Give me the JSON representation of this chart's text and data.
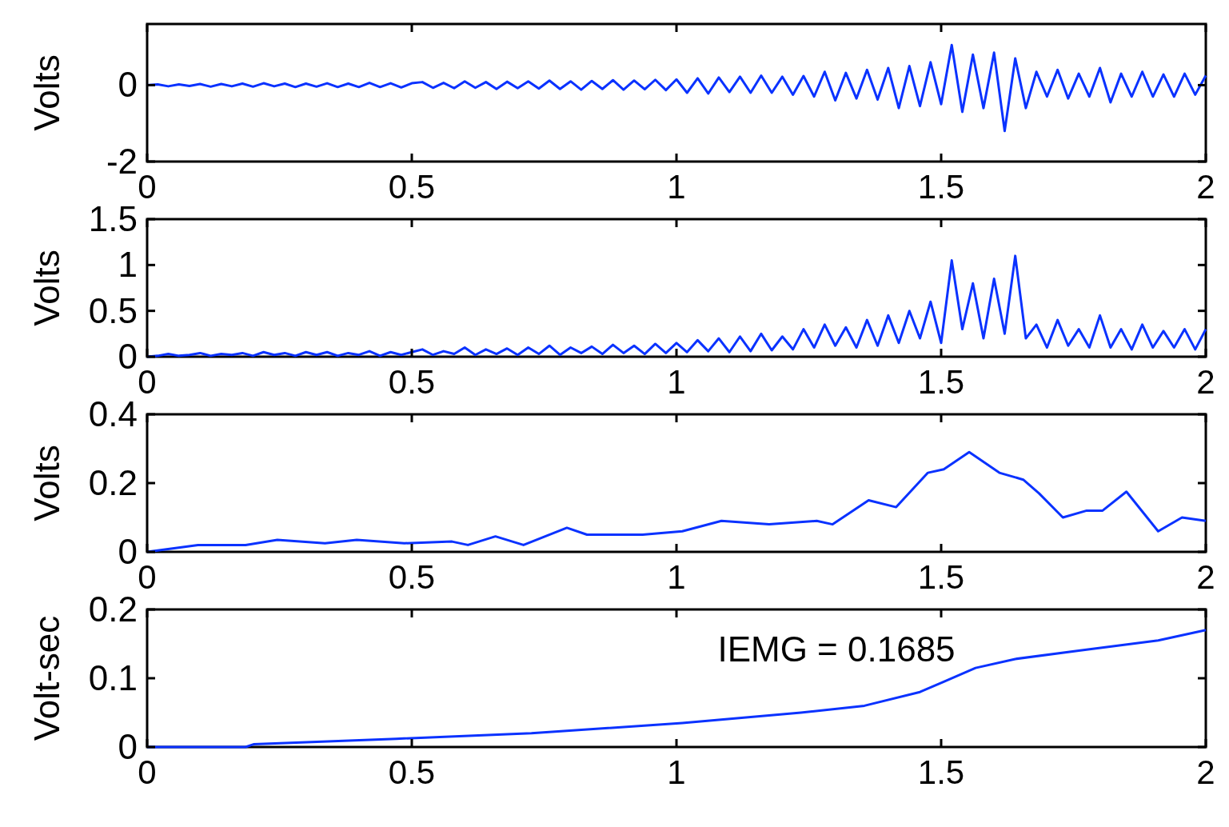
{
  "chart_data": [
    {
      "type": "line",
      "ylabel": "Volts",
      "xlim": [
        0,
        2
      ],
      "xticks": [
        0,
        0.5,
        1,
        1.5,
        2
      ],
      "ylim": [
        -2,
        1.6
      ],
      "yticks": [
        -2,
        0
      ],
      "x": [
        0,
        0.02,
        0.04,
        0.06,
        0.08,
        0.1,
        0.12,
        0.14,
        0.16,
        0.18,
        0.2,
        0.22,
        0.24,
        0.26,
        0.28,
        0.3,
        0.32,
        0.34,
        0.36,
        0.38,
        0.4,
        0.42,
        0.44,
        0.46,
        0.48,
        0.5,
        0.52,
        0.54,
        0.56,
        0.58,
        0.6,
        0.62,
        0.64,
        0.66,
        0.68,
        0.7,
        0.72,
        0.74,
        0.76,
        0.78,
        0.8,
        0.82,
        0.84,
        0.86,
        0.88,
        0.9,
        0.92,
        0.94,
        0.96,
        0.98,
        1,
        1.02,
        1.04,
        1.06,
        1.08,
        1.1,
        1.12,
        1.14,
        1.16,
        1.18,
        1.2,
        1.22,
        1.24,
        1.26,
        1.28,
        1.3,
        1.32,
        1.34,
        1.36,
        1.38,
        1.4,
        1.42,
        1.44,
        1.46,
        1.48,
        1.5,
        1.52,
        1.54,
        1.56,
        1.58,
        1.6,
        1.62,
        1.64,
        1.66,
        1.68,
        1.7,
        1.72,
        1.74,
        1.76,
        1.78,
        1.8,
        1.82,
        1.84,
        1.86,
        1.88,
        1.9,
        1.92,
        1.94,
        1.96,
        1.98,
        2
      ],
      "series": [
        {
          "color": "#0a32ff",
          "values": [
            0,
            0.02,
            -0.03,
            0.02,
            -0.02,
            0.03,
            -0.04,
            0.03,
            -0.03,
            0.04,
            -0.04,
            0.05,
            -0.03,
            0.04,
            -0.05,
            0.04,
            -0.04,
            0.05,
            -0.05,
            0.04,
            -0.05,
            0.06,
            -0.05,
            0.05,
            -0.06,
            0.05,
            0.08,
            -0.07,
            0.06,
            -0.08,
            0.1,
            -0.07,
            0.08,
            -0.1,
            0.09,
            -0.08,
            0.1,
            -0.09,
            0.12,
            -0.1,
            0.1,
            -0.12,
            0.11,
            -0.1,
            0.13,
            -0.12,
            0.12,
            -0.11,
            0.14,
            -0.13,
            0.15,
            -0.2,
            0.18,
            -0.22,
            0.2,
            -0.18,
            0.22,
            -0.2,
            0.25,
            -0.2,
            0.22,
            -0.25,
            0.24,
            -0.3,
            0.35,
            -0.4,
            0.32,
            -0.35,
            0.4,
            -0.38,
            0.45,
            -0.6,
            0.5,
            -0.55,
            0.6,
            -0.5,
            1.05,
            -0.7,
            0.8,
            -0.6,
            0.85,
            -1.2,
            0.7,
            -0.6,
            0.35,
            -0.3,
            0.4,
            -0.35,
            0.3,
            -0.3,
            0.45,
            -0.45,
            0.3,
            -0.3,
            0.35,
            -0.3,
            0.28,
            -0.3,
            0.3,
            -0.25,
            0.25
          ]
        }
      ]
    },
    {
      "type": "line",
      "ylabel": "Volts",
      "xlim": [
        0,
        2
      ],
      "xticks": [
        0,
        0.5,
        1,
        1.5,
        2
      ],
      "ylim": [
        0,
        1.5
      ],
      "yticks": [
        0,
        0.5,
        1,
        1.5
      ],
      "x": [
        0,
        0.02,
        0.04,
        0.06,
        0.08,
        0.1,
        0.12,
        0.14,
        0.16,
        0.18,
        0.2,
        0.22,
        0.24,
        0.26,
        0.28,
        0.3,
        0.32,
        0.34,
        0.36,
        0.38,
        0.4,
        0.42,
        0.44,
        0.46,
        0.48,
        0.5,
        0.52,
        0.54,
        0.56,
        0.58,
        0.6,
        0.62,
        0.64,
        0.66,
        0.68,
        0.7,
        0.72,
        0.74,
        0.76,
        0.78,
        0.8,
        0.82,
        0.84,
        0.86,
        0.88,
        0.9,
        0.92,
        0.94,
        0.96,
        0.98,
        1,
        1.02,
        1.04,
        1.06,
        1.08,
        1.1,
        1.12,
        1.14,
        1.16,
        1.18,
        1.2,
        1.22,
        1.24,
        1.26,
        1.28,
        1.3,
        1.32,
        1.34,
        1.36,
        1.38,
        1.4,
        1.42,
        1.44,
        1.46,
        1.48,
        1.5,
        1.52,
        1.54,
        1.56,
        1.58,
        1.6,
        1.62,
        1.64,
        1.66,
        1.68,
        1.7,
        1.72,
        1.74,
        1.76,
        1.78,
        1.8,
        1.82,
        1.84,
        1.86,
        1.88,
        1.9,
        1.92,
        1.94,
        1.96,
        1.98,
        2
      ],
      "series": [
        {
          "color": "#0a32ff",
          "values": [
            0,
            0.01,
            0.03,
            0.01,
            0.02,
            0.04,
            0.01,
            0.03,
            0.02,
            0.04,
            0.01,
            0.05,
            0.02,
            0.04,
            0.01,
            0.05,
            0.02,
            0.05,
            0.01,
            0.04,
            0.02,
            0.06,
            0.01,
            0.05,
            0.02,
            0.05,
            0.08,
            0.02,
            0.06,
            0.03,
            0.1,
            0.02,
            0.08,
            0.03,
            0.09,
            0.02,
            0.1,
            0.03,
            0.12,
            0.02,
            0.1,
            0.04,
            0.11,
            0.03,
            0.13,
            0.04,
            0.12,
            0.03,
            0.14,
            0.04,
            0.15,
            0.05,
            0.18,
            0.06,
            0.2,
            0.05,
            0.22,
            0.06,
            0.25,
            0.07,
            0.22,
            0.08,
            0.3,
            0.1,
            0.35,
            0.12,
            0.32,
            0.1,
            0.4,
            0.12,
            0.45,
            0.15,
            0.5,
            0.2,
            0.6,
            0.15,
            1.05,
            0.3,
            0.8,
            0.2,
            0.85,
            0.25,
            1.1,
            0.2,
            0.35,
            0.1,
            0.4,
            0.12,
            0.3,
            0.1,
            0.45,
            0.1,
            0.3,
            0.08,
            0.35,
            0.1,
            0.28,
            0.1,
            0.3,
            0.08,
            0.3
          ]
        }
      ]
    },
    {
      "type": "line",
      "ylabel": "Volts",
      "xlim": [
        0,
        2
      ],
      "xticks": [
        0,
        0.5,
        1,
        1.5,
        2
      ],
      "ylim": [
        0,
        0.4
      ],
      "yticks": [
        0,
        0.2,
        0.4
      ],
      "x": [
        0,
        0.096,
        0.186,
        0.246,
        0.336,
        0.396,
        0.486,
        0.576,
        0.606,
        0.658,
        0.711,
        0.793,
        0.831,
        0.936,
        1.011,
        1.085,
        1.175,
        1.265,
        1.295,
        1.363,
        1.415,
        1.475,
        1.505,
        1.553,
        1.61,
        1.655,
        1.685,
        1.73,
        1.775,
        1.805,
        1.85,
        1.91,
        1.955,
        2
      ],
      "series": [
        {
          "color": "#0a32ff",
          "values": [
            0,
            0.02,
            0.02,
            0.035,
            0.025,
            0.035,
            0.025,
            0.03,
            0.02,
            0.045,
            0.02,
            0.07,
            0.05,
            0.05,
            0.06,
            0.09,
            0.08,
            0.09,
            0.08,
            0.15,
            0.13,
            0.23,
            0.24,
            0.29,
            0.23,
            0.21,
            0.17,
            0.1,
            0.12,
            0.12,
            0.175,
            0.06,
            0.1,
            0.09
          ]
        }
      ]
    },
    {
      "type": "line",
      "ylabel": "Volt-sec",
      "xlim": [
        0,
        2
      ],
      "xticks": [
        0,
        0.5,
        1,
        1.5,
        2
      ],
      "ylim": [
        0,
        0.2
      ],
      "yticks": [
        0,
        0.1,
        0.2
      ],
      "annotations": [
        "IEMG = 0.1685"
      ],
      "x": [
        0,
        0.186,
        0.201,
        0.471,
        0.726,
        1.011,
        1.235,
        1.355,
        1.46,
        1.505,
        1.565,
        1.64,
        1.76,
        1.91,
        2
      ],
      "series": [
        {
          "color": "#0a32ff",
          "values": [
            0,
            0,
            0.004,
            0.012,
            0.02,
            0.035,
            0.05,
            0.06,
            0.08,
            0.095,
            0.115,
            0.128,
            0.14,
            0.155,
            0.17
          ]
        }
      ]
    }
  ]
}
